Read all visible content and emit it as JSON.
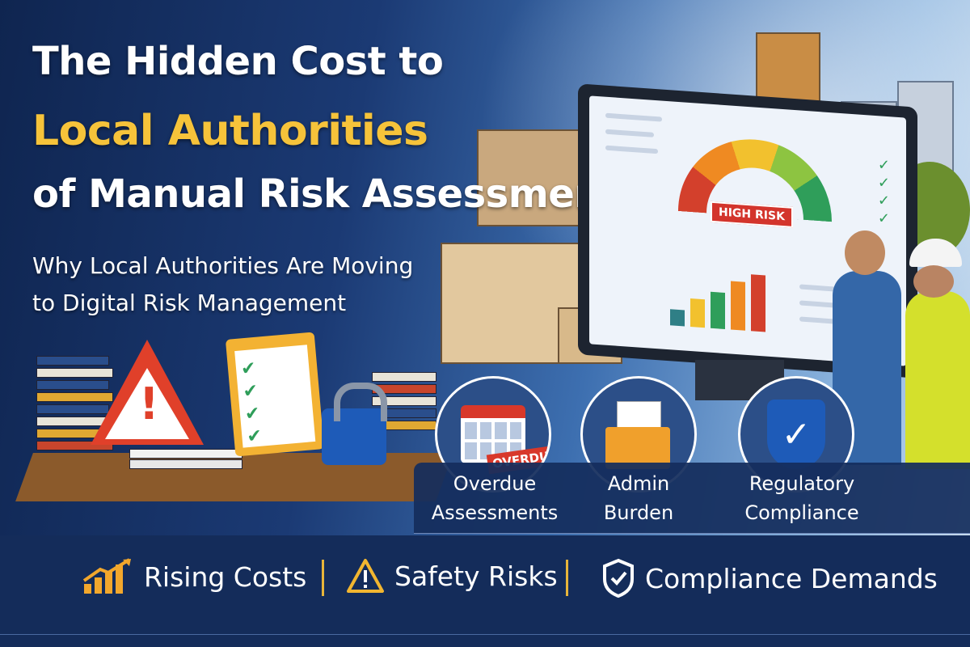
{
  "headline": {
    "line1": "The Hidden Cost to",
    "line2": "Local Authorities",
    "line3": "of Manual Risk Assessments"
  },
  "subtitle": {
    "line1": "Why Local Authorities Are Moving",
    "line2": "to Digital Risk Management"
  },
  "monitor": {
    "gauge_label": "HIGH RISK",
    "checklist_icon": "check-icon"
  },
  "features": [
    {
      "icon": "calendar-icon",
      "badge": "OVERDUE",
      "label_line1": "Overdue",
      "label_line2": "Assessments"
    },
    {
      "icon": "folder-documents-icon",
      "label_line1": "Admin",
      "label_line2": "Burden"
    },
    {
      "icon": "shield-check-icon",
      "label_line1": "Regulatory",
      "label_line2": "Compliance"
    }
  ],
  "bottom_bar": [
    {
      "icon": "rising-chart-icon",
      "label": "Rising Costs"
    },
    {
      "icon": "warning-icon",
      "label": "Safety Risks"
    },
    {
      "icon": "shield-check-icon",
      "label": "Compliance Demands"
    }
  ],
  "colors": {
    "navy": "#142c5a",
    "accent_yellow": "#f6c33a",
    "risk_red": "#d3342c",
    "check_green": "#2f9e5a"
  }
}
